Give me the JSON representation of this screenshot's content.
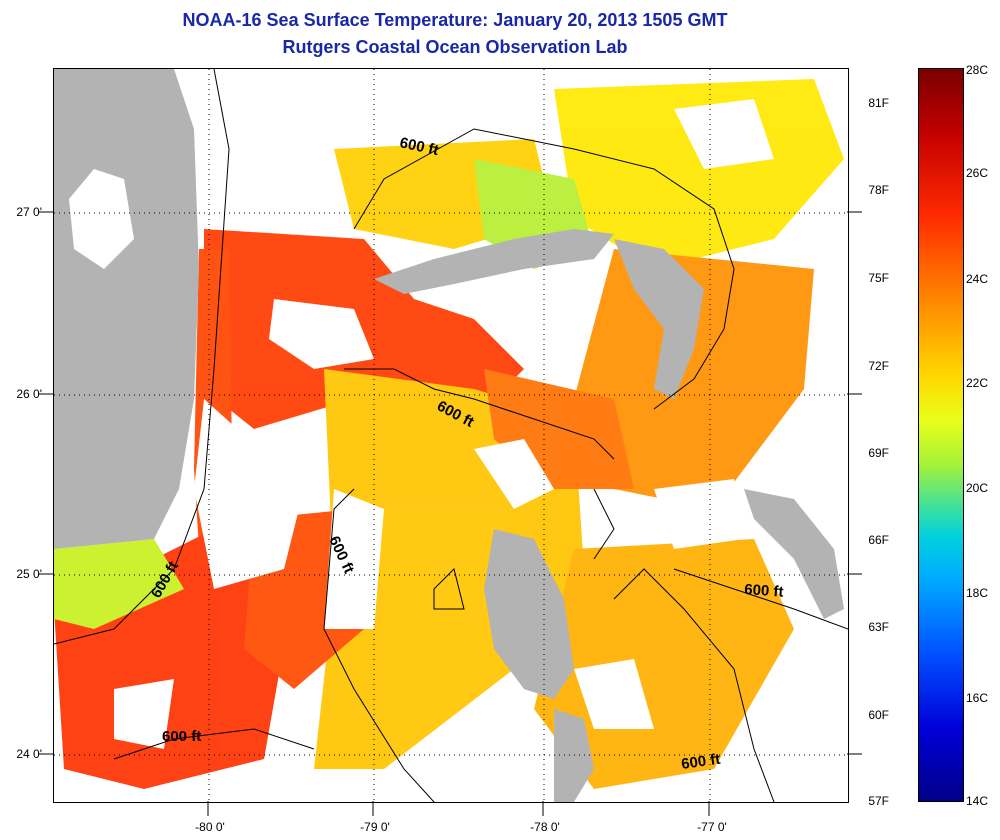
{
  "title": "NOAA-16 Sea Surface Temperature:  January 20, 2013 1505 GMT",
  "subtitle": "Rutgers Coastal Ocean Observation Lab",
  "map": {
    "lat_ticks": [
      "27 0'",
      "26 0'",
      "25 0'",
      "24 0'"
    ],
    "lon_ticks": [
      "-80 0'",
      "-79 0'",
      "-78 0'",
      "-77 0'"
    ],
    "contour_label": "600 ft",
    "colors": {
      "land": "#b3b3b3",
      "no_data": "#ffffff",
      "contour": "#000000",
      "title": "#1a28a8"
    }
  },
  "colorbar": {
    "fahrenheit": [
      "81F",
      "78F",
      "75F",
      "72F",
      "69F",
      "66F",
      "63F",
      "60F",
      "57F"
    ],
    "celsius": [
      "28C",
      "26C",
      "24C",
      "22C",
      "20C",
      "18C",
      "16C",
      "14C"
    ]
  }
}
